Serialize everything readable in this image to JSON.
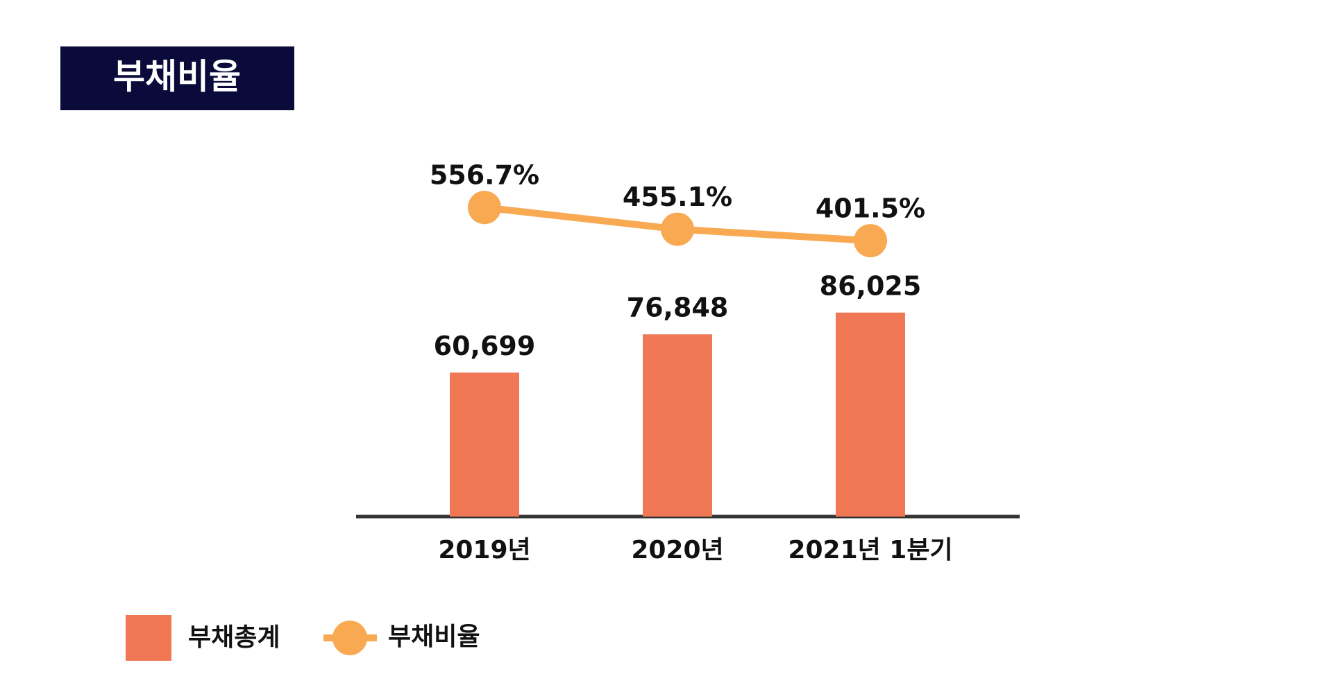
{
  "chart_data": {
    "type": "bar-line",
    "title": "부채비율",
    "categories": [
      "2019년",
      "2020년",
      "2021년 1분기"
    ],
    "series": [
      {
        "name": "부채총계",
        "type": "bar",
        "color": "#f07855",
        "values": [
          60699,
          76848,
          86025
        ],
        "value_labels": [
          "60,699",
          "76,848",
          "86,025"
        ]
      },
      {
        "name": "부채비율",
        "type": "line",
        "axis": "y2",
        "color": "#f8a952",
        "values": [
          556.7,
          455.1,
          401.5
        ],
        "value_labels": [
          "556.7%",
          "455.1%",
          "401.5%"
        ]
      }
    ],
    "ylim": [
      0,
      100000
    ],
    "y2lim": [
      0,
      700
    ],
    "legend": "bottom-left"
  }
}
